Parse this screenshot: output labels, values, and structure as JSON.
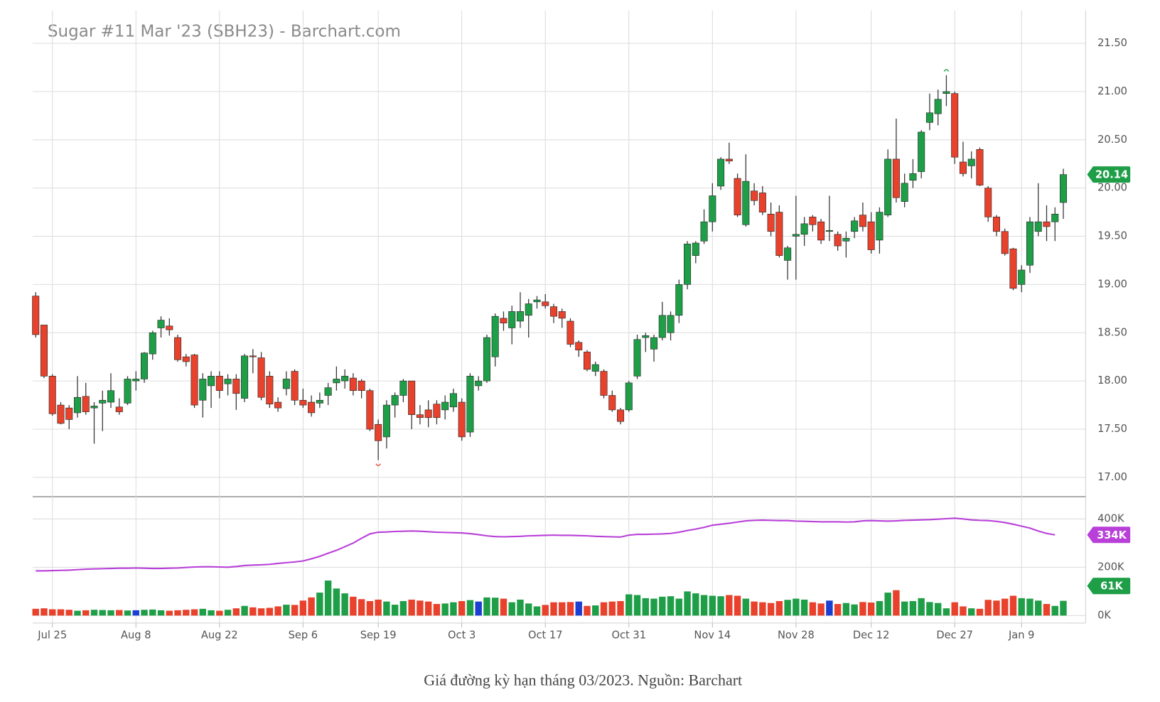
{
  "chart_data": [
    {
      "type": "candlestick",
      "title": "Sugar #11 Mar '23 (SBH23) - Barchart.com",
      "categories": [
        null,
        null,
        "Jul 25",
        null,
        null,
        null,
        null,
        null,
        null,
        null,
        null,
        null,
        "Aug 8",
        null,
        null,
        null,
        null,
        null,
        null,
        null,
        null,
        null,
        "Aug 22",
        null,
        null,
        null,
        null,
        null,
        null,
        null,
        null,
        null,
        "Sep 6",
        null,
        null,
        null,
        null,
        null,
        null,
        null,
        null,
        "Sep 19",
        null,
        null,
        null,
        null,
        null,
        null,
        null,
        null,
        null,
        "Oct 3",
        null,
        null,
        null,
        null,
        null,
        null,
        null,
        null,
        null,
        "Oct 17",
        null,
        null,
        null,
        null,
        null,
        null,
        null,
        null,
        null,
        "Oct 31",
        null,
        null,
        null,
        null,
        null,
        null,
        null,
        null,
        null,
        "Nov 14",
        null,
        null,
        null,
        null,
        null,
        null,
        null,
        null,
        null,
        "Nov 28",
        null,
        null,
        null,
        null,
        null,
        null,
        null,
        null,
        "Dec 12",
        null,
        null,
        null,
        null,
        null,
        null,
        null,
        null,
        null,
        "Dec 27",
        null,
        null,
        null,
        null,
        null,
        null,
        null,
        "Jan 9",
        null,
        null,
        null,
        null,
        null
      ],
      "open": [
        18.88,
        18.58,
        18.05,
        17.75,
        17.72,
        17.67,
        17.84,
        17.72,
        17.77,
        17.78,
        17.73,
        17.77,
        18.0,
        18.02,
        18.28,
        18.55,
        18.57,
        18.45,
        18.25,
        18.27,
        17.8,
        17.95,
        18.05,
        17.97,
        18.02,
        17.82,
        18.26,
        18.24,
        18.05,
        17.78,
        17.92,
        18.1,
        17.8,
        17.78,
        17.77,
        17.85,
        17.98,
        18.0,
        18.03,
        18.0,
        17.9,
        17.55,
        17.42,
        17.75,
        17.85,
        18.0,
        17.65,
        17.7,
        17.76,
        17.7,
        17.73,
        17.78,
        17.47,
        17.95,
        18.0,
        18.25,
        18.65,
        18.55,
        18.62,
        18.68,
        18.82,
        18.82,
        18.77,
        18.72,
        18.62,
        18.4,
        18.3,
        18.1,
        18.1,
        17.85,
        17.7,
        17.7,
        18.05,
        18.45,
        18.33,
        18.45,
        18.5,
        18.68,
        19.0,
        19.3,
        19.45,
        19.65,
        20.02,
        20.3,
        20.1,
        19.62,
        19.97,
        19.95,
        19.73,
        19.75,
        19.25,
        19.5,
        19.52,
        19.7,
        19.65,
        19.55,
        19.52,
        19.45,
        19.55,
        19.72,
        19.65,
        19.46,
        19.72,
        20.3,
        19.86,
        20.08,
        20.17,
        20.68,
        20.77,
        20.98,
        20.98,
        20.27,
        20.23,
        20.4,
        20.0,
        19.7,
        19.55,
        19.37,
        19.0,
        19.2,
        19.55,
        19.65,
        19.65,
        19.85
      ],
      "high": [
        18.92,
        18.58,
        18.07,
        17.78,
        17.75,
        18.05,
        17.98,
        17.78,
        17.9,
        18.08,
        17.82,
        18.05,
        18.1,
        18.3,
        18.52,
        18.67,
        18.65,
        18.48,
        18.28,
        18.28,
        18.08,
        18.1,
        18.1,
        18.07,
        18.07,
        18.28,
        18.33,
        18.3,
        18.1,
        17.83,
        18.1,
        18.12,
        17.92,
        17.85,
        17.88,
        17.98,
        18.15,
        18.12,
        18.08,
        18.02,
        17.92,
        17.6,
        17.8,
        17.88,
        18.02,
        18.0,
        17.75,
        17.8,
        17.8,
        17.85,
        17.92,
        17.82,
        18.08,
        18.05,
        18.48,
        18.7,
        18.72,
        18.78,
        18.92,
        18.85,
        18.88,
        18.9,
        18.8,
        18.75,
        18.65,
        18.42,
        18.32,
        18.2,
        18.12,
        17.9,
        17.72,
        18.0,
        18.48,
        18.5,
        18.48,
        18.82,
        18.72,
        19.05,
        19.45,
        19.45,
        19.78,
        20.05,
        20.32,
        20.47,
        20.15,
        20.35,
        20.05,
        20.02,
        19.85,
        19.82,
        19.4,
        19.92,
        19.7,
        19.72,
        19.68,
        19.92,
        19.55,
        19.55,
        19.7,
        19.85,
        19.75,
        19.8,
        20.4,
        20.72,
        20.15,
        20.3,
        20.6,
        20.98,
        21.02,
        21.17,
        21.0,
        20.48,
        20.38,
        20.42,
        20.02,
        19.72,
        19.58,
        19.38,
        19.2,
        19.7,
        20.05,
        19.82,
        19.8,
        20.2
      ],
      "low": [
        18.45,
        18.03,
        17.64,
        17.55,
        17.5,
        17.62,
        17.65,
        17.35,
        17.48,
        17.72,
        17.65,
        17.75,
        17.9,
        17.98,
        18.22,
        18.45,
        18.47,
        18.2,
        18.15,
        17.72,
        17.62,
        17.72,
        17.82,
        17.85,
        17.7,
        17.78,
        18.08,
        17.8,
        17.72,
        17.68,
        17.85,
        17.75,
        17.72,
        17.63,
        17.72,
        17.75,
        17.9,
        17.92,
        17.85,
        17.82,
        17.48,
        17.18,
        17.3,
        17.62,
        17.78,
        17.5,
        17.55,
        17.52,
        17.55,
        17.6,
        17.68,
        17.38,
        17.42,
        17.9,
        17.98,
        18.15,
        18.52,
        18.38,
        18.55,
        18.45,
        18.75,
        18.75,
        18.6,
        18.55,
        18.35,
        18.25,
        18.1,
        18.05,
        17.82,
        17.68,
        17.55,
        17.68,
        18.02,
        18.3,
        18.2,
        18.42,
        18.42,
        18.6,
        18.95,
        19.22,
        19.42,
        19.55,
        19.98,
        20.25,
        19.7,
        19.6,
        19.82,
        19.72,
        19.5,
        19.28,
        19.05,
        19.05,
        19.4,
        19.55,
        19.42,
        19.45,
        19.35,
        19.28,
        19.48,
        19.55,
        19.32,
        19.32,
        19.7,
        19.85,
        19.8,
        20.0,
        20.1,
        20.6,
        20.65,
        20.85,
        20.25,
        20.12,
        20.1,
        20.02,
        19.65,
        19.5,
        19.3,
        18.94,
        18.92,
        19.12,
        19.5,
        19.45,
        19.45,
        19.68
      ],
      "close": [
        18.48,
        18.05,
        17.66,
        17.56,
        17.6,
        17.83,
        17.68,
        17.74,
        17.8,
        17.9,
        17.68,
        18.02,
        18.02,
        18.29,
        18.5,
        18.63,
        18.53,
        18.22,
        18.2,
        17.75,
        18.02,
        18.05,
        17.9,
        18.02,
        17.87,
        18.26,
        18.25,
        17.83,
        17.76,
        17.72,
        18.02,
        17.8,
        17.75,
        17.67,
        17.8,
        17.93,
        18.02,
        18.05,
        17.9,
        17.9,
        17.5,
        17.38,
        17.75,
        17.85,
        18.0,
        17.65,
        17.62,
        17.62,
        17.62,
        17.78,
        17.87,
        17.42,
        18.05,
        18.0,
        18.45,
        18.67,
        18.6,
        18.72,
        18.72,
        18.8,
        18.84,
        18.78,
        18.67,
        18.65,
        18.38,
        18.32,
        18.12,
        18.17,
        17.85,
        17.7,
        17.58,
        17.98,
        18.43,
        18.47,
        18.45,
        18.68,
        18.68,
        19.0,
        19.42,
        19.43,
        19.65,
        19.92,
        20.3,
        20.28,
        19.72,
        20.07,
        19.87,
        19.75,
        19.55,
        19.3,
        19.38,
        19.52,
        19.63,
        19.62,
        19.46,
        19.56,
        19.4,
        19.48,
        19.66,
        19.6,
        19.36,
        19.75,
        20.3,
        19.9,
        20.05,
        20.15,
        20.58,
        20.78,
        20.92,
        21.0,
        20.32,
        20.15,
        20.3,
        20.03,
        19.7,
        19.55,
        19.32,
        18.96,
        19.15,
        19.65,
        19.65,
        19.6,
        19.73,
        20.14
      ],
      "up_color": "#1f9e48",
      "down_color": "#e8412c",
      "wick_color": "#333333",
      "tag_color": "#1f9e48",
      "ylim": [
        16.8,
        21.84
      ],
      "yticks": [
        {
          "value": 17,
          "label": "17.00"
        },
        {
          "value": 17.5,
          "label": "17.50"
        },
        {
          "value": 18,
          "label": "18.00"
        },
        {
          "value": 18.5,
          "label": "18.50"
        },
        {
          "value": 19,
          "label": "19.00"
        },
        {
          "value": 19.5,
          "label": "19.50"
        },
        {
          "value": 20,
          "label": "20.00"
        },
        {
          "value": 20.5,
          "label": "20.50"
        },
        {
          "value": 21,
          "label": "21.00"
        },
        {
          "value": 21.5,
          "label": "21.50"
        }
      ],
      "grid": true
    },
    {
      "type": "volume",
      "ylim": [
        -31,
        492
      ],
      "yticks": [
        {
          "value": 0,
          "label": "0K"
        },
        {
          "value": 200,
          "label": "200K"
        },
        {
          "value": 400,
          "label": "400K"
        }
      ],
      "grid": true,
      "series": [
        {
          "type": "line",
          "color": "#b83fd8",
          "last_label": "334K",
          "values": [
            185,
            185,
            186,
            187,
            188,
            190,
            192,
            193,
            194,
            195,
            196,
            196,
            197,
            196,
            195,
            195,
            196,
            197,
            199,
            201,
            202,
            202,
            201,
            200,
            203,
            207,
            209,
            210,
            212,
            216,
            219,
            222,
            226,
            235,
            245,
            258,
            270,
            285,
            300,
            320,
            338,
            345,
            346,
            348,
            349,
            350,
            349,
            347,
            345,
            344,
            343,
            342,
            339,
            335,
            330,
            327,
            326,
            327,
            328,
            330,
            331,
            332,
            333,
            332,
            332,
            331,
            330,
            328,
            327,
            326,
            325,
            333,
            336,
            336,
            337,
            338,
            340,
            345,
            352,
            358,
            365,
            374,
            378,
            382,
            387,
            392,
            394,
            395,
            394,
            393,
            393,
            391,
            390,
            389,
            388,
            388,
            388,
            387,
            388,
            392,
            393,
            392,
            391,
            392,
            394,
            395,
            396,
            397,
            399,
            401,
            403,
            400,
            396,
            394,
            393,
            390,
            385,
            378,
            370,
            362,
            350,
            340,
            334,
            null
          ]
        },
        {
          "type": "bar",
          "last_label": "61K",
          "tag_color": "#1f9e48",
          "values": [
            28,
            30,
            26,
            26,
            24,
            20,
            22,
            24,
            23,
            22,
            23,
            21,
            22,
            24,
            25,
            22,
            20,
            22,
            24,
            26,
            28,
            22,
            20,
            24,
            30,
            40,
            34,
            30,
            32,
            38,
            45,
            44,
            62,
            75,
            95,
            145,
            112,
            92,
            78,
            68,
            60,
            66,
            58,
            45,
            60,
            66,
            62,
            58,
            48,
            50,
            55,
            60,
            64,
            58,
            75,
            74,
            70,
            55,
            66,
            50,
            38,
            44,
            55,
            55,
            56,
            58,
            40,
            42,
            55,
            58,
            60,
            88,
            85,
            72,
            70,
            78,
            80,
            70,
            100,
            92,
            85,
            82,
            80,
            85,
            82,
            70,
            58,
            55,
            52,
            60,
            65,
            70,
            66,
            55,
            50,
            62,
            48,
            52,
            46,
            56,
            54,
            60,
            95,
            105,
            58,
            60,
            72,
            56,
            52,
            30,
            55,
            38,
            30,
            28,
            65,
            62,
            70,
            82,
            72,
            70,
            62,
            48,
            40,
            61
          ],
          "colors": [
            "#e8412c",
            "#e8412c",
            "#e8412c",
            "#e8412c",
            "#e8412c",
            "#1f9e48",
            "#e8412c",
            "#1f9e48",
            "#1f9e48",
            "#1f9e48",
            "#e8412c",
            "#1f9e48",
            "#1b3fd0",
            "#1f9e48",
            "#1f9e48",
            "#1f9e48",
            "#e8412c",
            "#e8412c",
            "#e8412c",
            "#e8412c",
            "#1f9e48",
            "#1f9e48",
            "#e8412c",
            "#1f9e48",
            "#e8412c",
            "#1f9e48",
            "#e8412c",
            "#e8412c",
            "#e8412c",
            "#e8412c",
            "#1f9e48",
            "#e8412c",
            "#e8412c",
            "#e8412c",
            "#1f9e48",
            "#1f9e48",
            "#1f9e48",
            "#1f9e48",
            "#e8412c",
            "#e8412c",
            "#e8412c",
            "#e8412c",
            "#1f9e48",
            "#1f9e48",
            "#1f9e48",
            "#e8412c",
            "#e8412c",
            "#e8412c",
            "#e8412c",
            "#1f9e48",
            "#1f9e48",
            "#e8412c",
            "#1f9e48",
            "#1b3fd0",
            "#1f9e48",
            "#1f9e48",
            "#e8412c",
            "#1f9e48",
            "#1f9e48",
            "#1f9e48",
            "#1f9e48",
            "#e8412c",
            "#e8412c",
            "#e8412c",
            "#e8412c",
            "#1b3fd0",
            "#e8412c",
            "#1f9e48",
            "#e8412c",
            "#e8412c",
            "#e8412c",
            "#1f9e48",
            "#1f9e48",
            "#1f9e48",
            "#1f9e48",
            "#1f9e48",
            "#1f9e48",
            "#1f9e48",
            "#1f9e48",
            "#1f9e48",
            "#1f9e48",
            "#1f9e48",
            "#1f9e48",
            "#e8412c",
            "#e8412c",
            "#1f9e48",
            "#e8412c",
            "#e8412c",
            "#e8412c",
            "#e8412c",
            "#1f9e48",
            "#1f9e48",
            "#1f9e48",
            "#e8412c",
            "#e8412c",
            "#1b3fd0",
            "#e8412c",
            "#1f9e48",
            "#1f9e48",
            "#e8412c",
            "#e8412c",
            "#1f9e48",
            "#1f9e48",
            "#e8412c",
            "#1f9e48",
            "#1f9e48",
            "#1f9e48",
            "#1f9e48",
            "#1f9e48",
            "#1f9e48",
            "#e8412c",
            "#e8412c",
            "#1f9e48",
            "#e8412c",
            "#e8412c",
            "#e8412c",
            "#e8412c",
            "#e8412c",
            "#1f9e48",
            "#1f9e48",
            "#1f9e48",
            "#e8412c",
            "#1f9e48",
            "#1f9e48"
          ]
        }
      ]
    }
  ],
  "caption": "Giá đường kỳ hạn tháng 03/2023. Nguồn: Barchart"
}
